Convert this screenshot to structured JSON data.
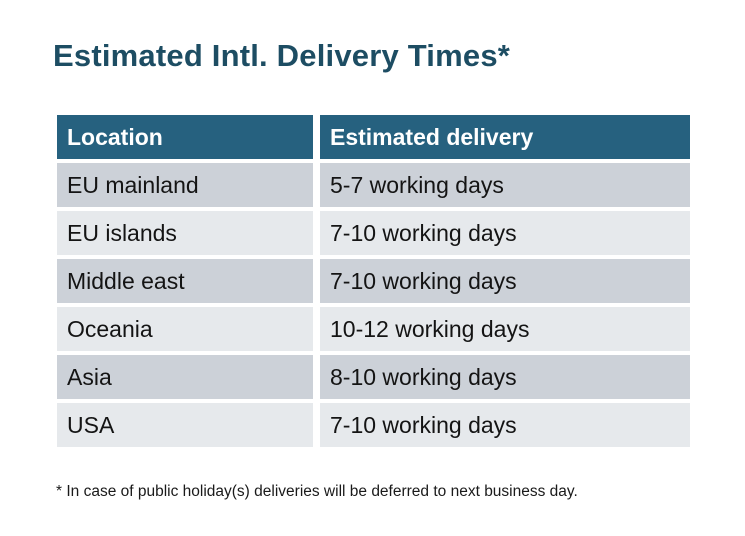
{
  "title": "Estimated Intl. Delivery Times*",
  "table": {
    "headers": {
      "location": "Location",
      "delivery": "Estimated delivery"
    },
    "rows": [
      {
        "location": "EU mainland",
        "delivery": "5-7 working days"
      },
      {
        "location": "EU islands",
        "delivery": "7-10 working days"
      },
      {
        "location": "Middle east",
        "delivery": "7-10 working days"
      },
      {
        "location": "Oceania",
        "delivery": "10-12 working days"
      },
      {
        "location": "Asia",
        "delivery": "8-10 working days"
      },
      {
        "location": "USA",
        "delivery": "7-10 working days"
      }
    ]
  },
  "footnote": "* In case of public holiday(s) deliveries will be deferred to next business day.",
  "colors": {
    "title_text": "#1d4d63",
    "header_bg": "#26617f",
    "header_text": "#ffffff",
    "row_dark": "#ccd1d8",
    "row_light": "#e6e9ec",
    "body_text": "#141414",
    "page_bg": "#ffffff"
  }
}
